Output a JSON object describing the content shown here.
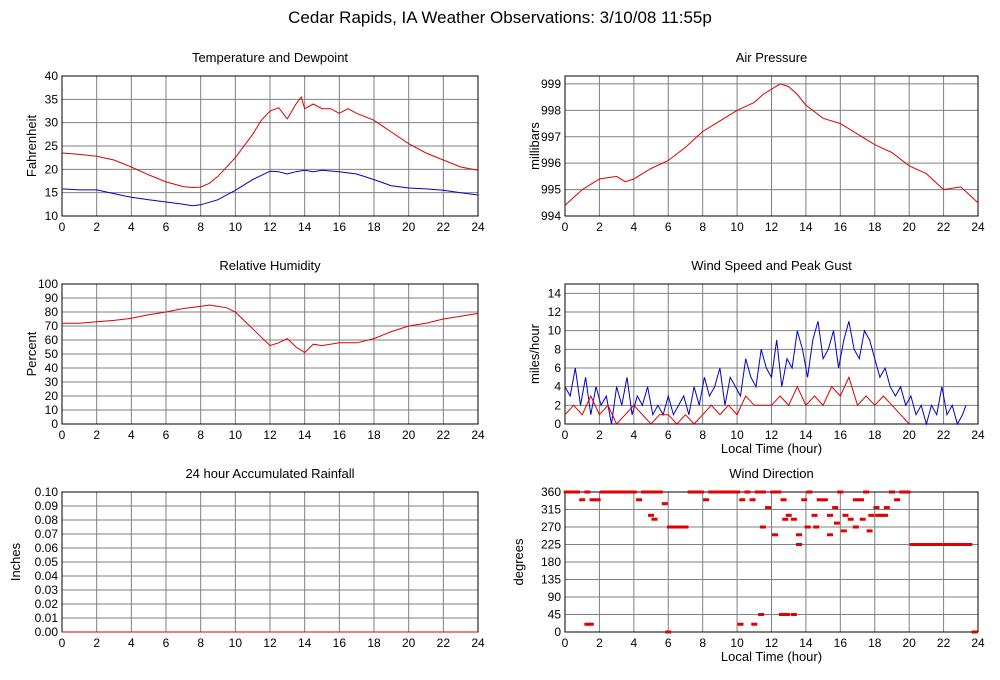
{
  "page": {
    "title": "Cedar Rapids, IA Weather Observations: 3/10/08 11:55p"
  },
  "colors": {
    "red": "#e00000",
    "blue": "#0000cc",
    "grid": "#808080",
    "frame": "#000000"
  },
  "chart_data": [
    {
      "id": "temp",
      "type": "line",
      "title": "Temperature and Dewpoint",
      "xlabel": "",
      "ylabel": "Fahrenheit",
      "xlim": [
        0,
        24
      ],
      "ylim": [
        10,
        40
      ],
      "xticks": [
        0,
        2,
        4,
        6,
        8,
        10,
        12,
        14,
        16,
        18,
        20,
        22,
        24
      ],
      "yticks": [
        10,
        15,
        20,
        25,
        30,
        35,
        40
      ],
      "series": [
        {
          "color": "red",
          "x": [
            0,
            1,
            2,
            3,
            4,
            5,
            6,
            7,
            7.5,
            8,
            8.5,
            9,
            10,
            11,
            11.5,
            12,
            12.5,
            13,
            13.5,
            13.8,
            14,
            14.5,
            15,
            15.5,
            16,
            16.5,
            17,
            18,
            19,
            20,
            21,
            22,
            23,
            24
          ],
          "y": [
            23.5,
            23.2,
            22.8,
            22,
            20.5,
            18.8,
            17.3,
            16.3,
            16.1,
            16.2,
            17,
            18.5,
            22.5,
            27.5,
            30.5,
            32.5,
            33.2,
            30.8,
            34,
            35.5,
            33,
            34,
            33,
            33,
            32,
            33,
            32,
            30.5,
            28,
            25.5,
            23.5,
            22,
            20.5,
            19.8
          ]
        },
        {
          "color": "blue",
          "x": [
            0,
            1,
            2,
            3,
            4,
            5,
            6,
            7,
            7.5,
            8,
            9,
            10,
            11,
            12,
            12.5,
            13,
            13.5,
            14,
            14.5,
            15,
            16,
            17,
            18,
            19,
            20,
            21,
            22,
            23,
            24
          ],
          "y": [
            15.8,
            15.6,
            15.6,
            14.8,
            14,
            13.5,
            13,
            12.5,
            12.2,
            12.4,
            13.5,
            15.5,
            17.8,
            19.6,
            19.5,
            19,
            19.5,
            19.8,
            19.5,
            19.8,
            19.5,
            19,
            17.8,
            16.5,
            16,
            15.8,
            15.5,
            15,
            14.5
          ]
        }
      ]
    },
    {
      "id": "pressure",
      "type": "line",
      "title": "Air Pressure",
      "xlabel": "",
      "ylabel": "millibars",
      "xlim": [
        0,
        24
      ],
      "ylim": [
        994,
        999.3
      ],
      "xticks": [
        0,
        2,
        4,
        6,
        8,
        10,
        12,
        14,
        16,
        18,
        20,
        22,
        24
      ],
      "yticks": [
        994,
        995,
        996,
        997,
        998,
        999
      ],
      "series": [
        {
          "color": "red",
          "x": [
            0,
            0.5,
            1,
            1.5,
            2,
            3,
            3.5,
            4,
            5,
            6,
            7,
            8,
            9,
            10,
            11,
            11.5,
            12,
            12.5,
            13,
            13.5,
            14,
            15,
            16,
            17,
            18,
            19,
            20,
            21,
            22,
            23,
            23.5,
            24
          ],
          "y": [
            994.4,
            994.7,
            995,
            995.2,
            995.4,
            995.5,
            995.3,
            995.4,
            995.8,
            996.1,
            996.6,
            997.2,
            997.6,
            998.0,
            998.3,
            998.6,
            998.8,
            999.0,
            998.9,
            998.6,
            998.2,
            997.7,
            997.5,
            997.1,
            996.7,
            996.4,
            995.9,
            995.6,
            995.0,
            995.1,
            994.8,
            994.5
          ]
        }
      ]
    },
    {
      "id": "humidity",
      "type": "line",
      "title": "Relative Humidity",
      "xlabel": "",
      "ylabel": "Percent",
      "xlim": [
        0,
        24
      ],
      "ylim": [
        0,
        100
      ],
      "xticks": [
        0,
        2,
        4,
        6,
        8,
        10,
        12,
        14,
        16,
        18,
        20,
        22,
        24
      ],
      "yticks": [
        0,
        10,
        20,
        30,
        40,
        50,
        60,
        70,
        80,
        90,
        100
      ],
      "series": [
        {
          "color": "red",
          "x": [
            0,
            1,
            2,
            3,
            4,
            5,
            6,
            7,
            8,
            8.5,
            9,
            9.5,
            10,
            10.5,
            11,
            11.5,
            12,
            12.5,
            13,
            13.5,
            14,
            14.5,
            15,
            16,
            17,
            18,
            19,
            20,
            21,
            22,
            23,
            24
          ],
          "y": [
            72,
            72,
            73,
            74,
            75.5,
            78,
            80,
            82.5,
            84,
            85,
            84,
            83,
            80,
            74,
            68,
            62,
            56,
            58,
            61,
            55,
            51,
            57,
            56,
            58,
            58,
            61,
            66,
            70,
            72,
            75,
            77,
            79
          ]
        }
      ]
    },
    {
      "id": "wind",
      "type": "line",
      "title": "Wind Speed and Peak Gust",
      "xlabel": "Local Time (hour)",
      "ylabel": "miles/hour",
      "xlim": [
        0,
        24
      ],
      "ylim": [
        0,
        15
      ],
      "xticks": [
        0,
        2,
        4,
        6,
        8,
        10,
        12,
        14,
        16,
        18,
        20,
        22,
        24
      ],
      "yticks": [
        0,
        2,
        4,
        6,
        8,
        10,
        12,
        14
      ],
      "series": [
        {
          "color": "blue",
          "x": [
            0,
            0.3,
            0.6,
            0.9,
            1.2,
            1.5,
            1.8,
            2.1,
            2.4,
            2.7,
            3,
            3.3,
            3.6,
            3.9,
            4.2,
            4.5,
            4.8,
            5.1,
            5.4,
            5.7,
            6,
            6.3,
            6.6,
            6.9,
            7.2,
            7.5,
            7.8,
            8.1,
            8.4,
            8.7,
            9,
            9.3,
            9.6,
            9.9,
            10.2,
            10.5,
            10.8,
            11.1,
            11.4,
            11.7,
            12,
            12.3,
            12.6,
            12.9,
            13.2,
            13.5,
            13.8,
            14.1,
            14.4,
            14.7,
            15,
            15.3,
            15.6,
            15.9,
            16.2,
            16.5,
            16.8,
            17.1,
            17.4,
            17.7,
            18,
            18.3,
            18.6,
            18.9,
            19.2,
            19.5,
            19.8,
            20.1,
            20.4,
            20.7,
            21,
            21.3,
            21.6,
            21.9,
            22.2,
            22.5,
            22.8,
            23.1,
            23.3
          ],
          "y": [
            4,
            3,
            6,
            2,
            5,
            1,
            4,
            2,
            3,
            0,
            4,
            2,
            5,
            1,
            3,
            2,
            4,
            1,
            2,
            1,
            3,
            1,
            2,
            3,
            1,
            4,
            2,
            5,
            3,
            4,
            6,
            2,
            5,
            4,
            3,
            7,
            5,
            4,
            8,
            6,
            5,
            9,
            4,
            7,
            6,
            10,
            8,
            5,
            9,
            11,
            7,
            8,
            10,
            6,
            9,
            11,
            8,
            7,
            10,
            9,
            7,
            5,
            6,
            4,
            3,
            4,
            2,
            3,
            1,
            2,
            0,
            2,
            1,
            4,
            1,
            2,
            0,
            1,
            2
          ]
        },
        {
          "color": "red",
          "x": [
            0,
            0.5,
            1,
            1.5,
            2,
            2.5,
            3,
            3.5,
            4,
            4.5,
            5,
            5.5,
            6,
            6.5,
            7,
            7.5,
            8,
            8.5,
            9,
            9.5,
            10,
            10.5,
            11,
            11.5,
            12,
            12.5,
            13,
            13.5,
            14,
            14.5,
            15,
            15.5,
            16,
            16.5,
            17,
            17.5,
            18,
            18.5,
            19,
            19.5,
            20
          ],
          "y": [
            1,
            2,
            1,
            3,
            1,
            2,
            0,
            1,
            2,
            1,
            0,
            1,
            1,
            0,
            1,
            0,
            1,
            2,
            1,
            2,
            1,
            3,
            2,
            2,
            2,
            3,
            2,
            4,
            2,
            3,
            2,
            4,
            3,
            5,
            2,
            3,
            2,
            3,
            2,
            1,
            0
          ]
        }
      ]
    },
    {
      "id": "rain",
      "type": "line",
      "title": "24 hour Accumulated Rainfall",
      "xlabel": "",
      "ylabel": "Inches",
      "xlim": [
        0,
        24
      ],
      "ylim": [
        0,
        0.1
      ],
      "xticks": [
        0,
        2,
        4,
        6,
        8,
        10,
        12,
        14,
        16,
        18,
        20,
        22,
        24
      ],
      "yticks": [
        "0.00",
        "0.01",
        "0.02",
        "0.03",
        "0.04",
        "0.05",
        "0.06",
        "0.07",
        "0.08",
        "0.09",
        "0.10"
      ],
      "series": [
        {
          "color": "red",
          "x": [
            0,
            24
          ],
          "y": [
            0,
            0
          ]
        }
      ]
    },
    {
      "id": "winddir",
      "type": "scatter",
      "title": "Wind Direction",
      "xlabel": "Local Time (hour)",
      "ylabel": "degrees",
      "xlim": [
        0,
        24
      ],
      "ylim": [
        0,
        360
      ],
      "xticks": [
        0,
        2,
        4,
        6,
        8,
        10,
        12,
        14,
        16,
        18,
        20,
        22,
        24
      ],
      "yticks": [
        0,
        45,
        90,
        135,
        180,
        225,
        270,
        315,
        360
      ],
      "series": [
        {
          "color": "red",
          "x": [
            0.1,
            0.4,
            0.7,
            1.0,
            1.3,
            1.6,
            1.9,
            2.2,
            2.5,
            2.8,
            3.1,
            3.4,
            3.7,
            4.0,
            4.3,
            4.6,
            4.9,
            5.2,
            5.5,
            5.8,
            6.1,
            6.4,
            6.7,
            7.0,
            7.3,
            7.6,
            7.9,
            8.2,
            8.5,
            8.8,
            9.1,
            9.4,
            9.7,
            10.0,
            10.3,
            10.6,
            10.9,
            11.2,
            11.5,
            11.8,
            12.1,
            12.4,
            12.7,
            13.0,
            13.3,
            13.6,
            13.9,
            14.2,
            14.5,
            14.8,
            15.1,
            15.4,
            15.7,
            16.0,
            16.3,
            16.6,
            16.9,
            17.2,
            17.5,
            17.8,
            18.1,
            18.4,
            18.7,
            19.0,
            19.3,
            19.6,
            19.9,
            20.2,
            20.5,
            20.8,
            21.1,
            21.4,
            21.7,
            22.0,
            22.3,
            22.6,
            22.9,
            23.2,
            23.5,
            23.8,
            1.3,
            1.5,
            5.0,
            5.2,
            6.0,
            6.3,
            6.6,
            7.0,
            10.2,
            11.0,
            11.4,
            12.6,
            12.9,
            13.3,
            11.5,
            12.2,
            12.8,
            13.6,
            14.1,
            14.6,
            15.4,
            15.8,
            16.2,
            16.9,
            17.3,
            17.7,
            18.2,
            18.6
          ],
          "y": [
            360,
            360,
            360,
            340,
            360,
            340,
            340,
            360,
            360,
            360,
            360,
            360,
            360,
            360,
            340,
            360,
            360,
            360,
            360,
            330,
            270,
            270,
            270,
            270,
            360,
            360,
            360,
            340,
            360,
            360,
            360,
            360,
            360,
            360,
            340,
            360,
            340,
            360,
            360,
            320,
            360,
            360,
            340,
            300,
            290,
            225,
            340,
            360,
            300,
            340,
            340,
            300,
            320,
            360,
            300,
            290,
            340,
            340,
            360,
            300,
            320,
            300,
            320,
            360,
            340,
            360,
            360,
            225,
            225,
            225,
            225,
            225,
            225,
            225,
            225,
            225,
            225,
            225,
            225,
            0,
            20,
            20,
            300,
            290,
            0,
            270,
            270,
            270,
            20,
            20,
            45,
            45,
            45,
            45,
            270,
            250,
            290,
            250,
            270,
            270,
            250,
            280,
            260,
            270,
            290,
            260,
            300,
            300
          ]
        }
      ]
    }
  ]
}
